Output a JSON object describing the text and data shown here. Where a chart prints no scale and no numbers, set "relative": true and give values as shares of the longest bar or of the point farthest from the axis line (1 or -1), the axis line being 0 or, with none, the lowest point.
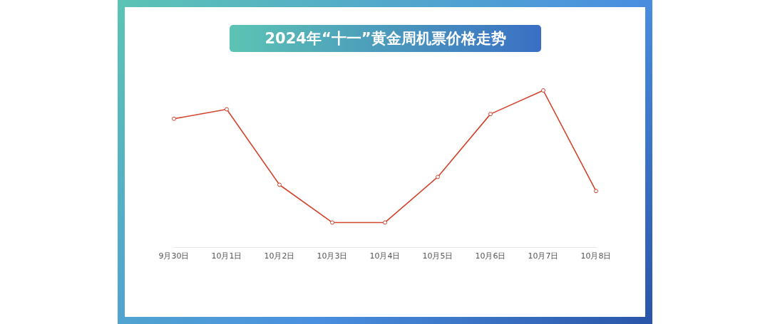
{
  "chart_data": {
    "type": "line",
    "title": "2024年“十一”黄金周机票价格走势",
    "relative": true,
    "categories": [
      "9月30日",
      "10月1日",
      "10月2日",
      "10月3日",
      "10月4日",
      "10月5日",
      "10月6日",
      "10月7日",
      "10月8日"
    ],
    "series": [
      {
        "color": "#d2442c",
        "values": [
          0.82,
          0.88,
          0.4,
          0.16,
          0.16,
          0.45,
          0.85,
          1,
          0.36
        ]
      }
    ],
    "marker": "circle",
    "grid": false,
    "legend": false
  }
}
